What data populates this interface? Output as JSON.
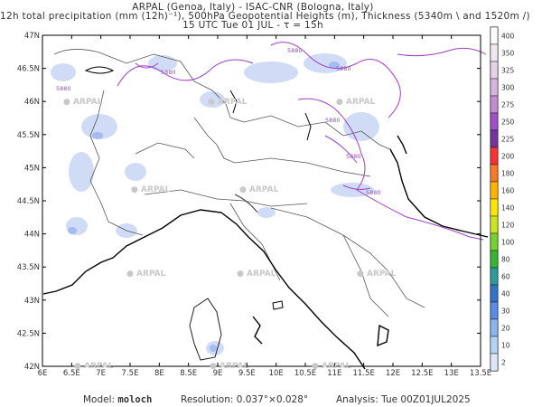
{
  "header": {
    "line1": "ARPAL (Genoa, Italy)  -  ISAC-CNR (Bologna, Italy)",
    "line2": "12h total precipitation (mm (12h)⁻¹), 500hPa Geopotential Heights (m), Thickness (5340m \\ and 1520m /)",
    "line3": "15 UTC Tue 01 JUL  -  τ = 15h"
  },
  "axes": {
    "lat_labels": [
      "47N",
      "46.5N",
      "46N",
      "45.5N",
      "45N",
      "44.5N",
      "44N",
      "43.5N",
      "43N",
      "42.5N",
      "42N"
    ],
    "lon_labels": [
      "6E",
      "6.5E",
      "7E",
      "7.5E",
      "8E",
      "8.5E",
      "9E",
      "9.5E",
      "10E",
      "10.5E",
      "11E",
      "11.5E",
      "12E",
      "12.5E",
      "13E",
      "13.5E"
    ]
  },
  "contour_labels": [
    "5880",
    "5880",
    "5880",
    "5880",
    "5880",
    "5880",
    "5880"
  ],
  "watermark": "ARPAL",
  "colorbar": {
    "labels": [
      "400",
      "350",
      "325",
      "300",
      "275",
      "250",
      "225",
      "200",
      "180",
      "160",
      "140",
      "120",
      "100",
      "80",
      "60",
      "40",
      "30",
      "20",
      "10",
      "2"
    ],
    "colors": [
      "#fafafa",
      "#f0e8f0",
      "#e6d2e6",
      "#d7b4de",
      "#c08cd2",
      "#a050c8",
      "#7832a0",
      "#ff3232",
      "#ff7828",
      "#ffb400",
      "#ffe600",
      "#c8e61e",
      "#78d22d",
      "#37b432",
      "#2d9b9b",
      "#3273c8",
      "#5a8ce6",
      "#8cb4f0",
      "#b4d2f5",
      "#dce8f8"
    ]
  },
  "footer": {
    "model_label": "Model:",
    "model_value": "moloch",
    "resolution": "Resolution: 0.037°×0.028°",
    "analysis": "Analysis: Tue 00Z01JUL2025"
  }
}
